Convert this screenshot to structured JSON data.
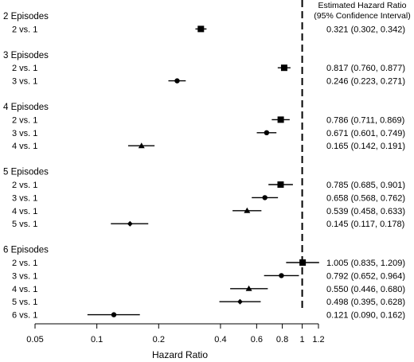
{
  "chart_data": {
    "type": "forest",
    "xlabel": "Hazard Ratio",
    "x_scale": "log",
    "xlim": [
      0.05,
      1.2
    ],
    "x_ticks": [
      "0.05",
      "0.1",
      "0.2",
      "0.4",
      "0.6",
      "0.8",
      "1",
      "1.2"
    ],
    "x_tick_values": [
      0.05,
      0.1,
      0.2,
      0.4,
      0.6,
      0.8,
      1,
      1.2
    ],
    "reference_line": 1,
    "header": [
      "Estimated Hazard Ratio",
      "(95% Confidence Interval)"
    ],
    "groups": [
      {
        "label": "2 Episodes",
        "rows": [
          {
            "label": "2 vs. 1",
            "marker": "square",
            "hr": 0.321,
            "lo": 0.302,
            "hi": 0.342,
            "text": "0.321 (0.302, 0.342)"
          }
        ]
      },
      {
        "label": "3 Episodes",
        "rows": [
          {
            "label": "2 vs. 1",
            "marker": "square",
            "hr": 0.817,
            "lo": 0.76,
            "hi": 0.877,
            "text": "0.817 (0.760, 0.877)"
          },
          {
            "label": "3 vs. 1",
            "marker": "circle",
            "hr": 0.246,
            "lo": 0.223,
            "hi": 0.271,
            "text": "0.246 (0.223, 0.271)"
          }
        ]
      },
      {
        "label": "4 Episodes",
        "rows": [
          {
            "label": "2 vs. 1",
            "marker": "square",
            "hr": 0.786,
            "lo": 0.711,
            "hi": 0.869,
            "text": "0.786 (0.711, 0.869)"
          },
          {
            "label": "3 vs. 1",
            "marker": "circle",
            "hr": 0.671,
            "lo": 0.601,
            "hi": 0.749,
            "text": "0.671 (0.601, 0.749)"
          },
          {
            "label": "4 vs. 1",
            "marker": "triangle",
            "hr": 0.165,
            "lo": 0.142,
            "hi": 0.191,
            "text": "0.165 (0.142, 0.191)"
          }
        ]
      },
      {
        "label": "5 Episodes",
        "rows": [
          {
            "label": "2 vs. 1",
            "marker": "square",
            "hr": 0.785,
            "lo": 0.685,
            "hi": 0.901,
            "text": "0.785 (0.685, 0.901)"
          },
          {
            "label": "3 vs. 1",
            "marker": "circle",
            "hr": 0.658,
            "lo": 0.568,
            "hi": 0.762,
            "text": "0.658 (0.568, 0.762)"
          },
          {
            "label": "4 vs. 1",
            "marker": "triangle",
            "hr": 0.539,
            "lo": 0.458,
            "hi": 0.633,
            "text": "0.539 (0.458, 0.633)"
          },
          {
            "label": "5 vs. 1",
            "marker": "diamond",
            "hr": 0.145,
            "lo": 0.117,
            "hi": 0.178,
            "text": "0.145 (0.117, 0.178)"
          }
        ]
      },
      {
        "label": "6 Episodes",
        "rows": [
          {
            "label": "2 vs. 1",
            "marker": "square",
            "hr": 1.005,
            "lo": 0.835,
            "hi": 1.209,
            "text": "1.005 (0.835, 1.209)"
          },
          {
            "label": "3 vs. 1",
            "marker": "circle",
            "hr": 0.792,
            "lo": 0.652,
            "hi": 0.964,
            "text": "0.792 (0.652, 0.964)"
          },
          {
            "label": "4 vs. 1",
            "marker": "triangle",
            "hr": 0.55,
            "lo": 0.446,
            "hi": 0.68,
            "text": "0.550 (0.446, 0.680)"
          },
          {
            "label": "5 vs. 1",
            "marker": "diamond",
            "hr": 0.498,
            "lo": 0.395,
            "hi": 0.628,
            "text": "0.498 (0.395, 0.628)"
          },
          {
            "label": "6 vs. 1",
            "marker": "dot",
            "hr": 0.121,
            "lo": 0.09,
            "hi": 0.162,
            "text": "0.121 (0.090, 0.162)"
          }
        ]
      }
    ]
  }
}
